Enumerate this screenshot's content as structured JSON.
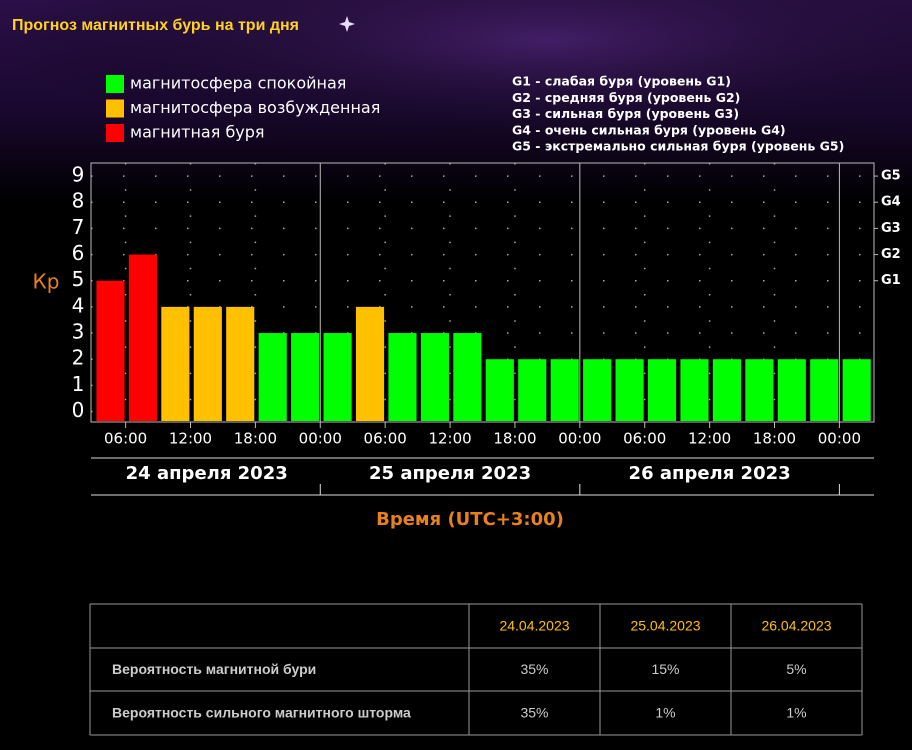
{
  "page": {
    "title": "Прогноз магнитных бурь на три дня"
  },
  "chart_data": {
    "type": "bar",
    "ylabel": "Кр",
    "xlabel": "Время (UTC+3:00)",
    "legend": [
      {
        "name": "магнитосфера спокойная",
        "color": "#00ff00"
      },
      {
        "name": "магнитосфера возбужденная",
        "color": "#ffc000"
      },
      {
        "name": "магнитная буря",
        "color": "#ff0000"
      }
    ],
    "notes": [
      "G1 - слабая буря (уровень G1)",
      "G2 - средняя буря (уровень G2)",
      "G3 - сильная буря (уровень G3)",
      "G4 - очень сильная буря (уровень G4)",
      "G5 - экстремально сильная буря (уровень G5)"
    ],
    "x": [
      3,
      6,
      9,
      12,
      15,
      18,
      21,
      24,
      27,
      30,
      33,
      36,
      39,
      42,
      45,
      48,
      51,
      54,
      57,
      60,
      63,
      66,
      69,
      72
    ],
    "values": [
      5,
      6,
      4,
      4,
      4,
      3,
      3,
      3,
      4,
      3,
      3,
      3,
      2,
      2,
      2,
      2,
      2,
      2,
      2,
      2,
      2,
      2,
      2,
      2
    ],
    "colors": [
      "#ff0000",
      "#ff0000",
      "#ffc000",
      "#ffc000",
      "#ffc000",
      "#00ff00",
      "#00ff00",
      "#00ff00",
      "#ffc000",
      "#00ff00",
      "#00ff00",
      "#00ff00",
      "#00ff00",
      "#00ff00",
      "#00ff00",
      "#00ff00",
      "#00ff00",
      "#00ff00",
      "#00ff00",
      "#00ff00",
      "#00ff00",
      "#00ff00",
      "#00ff00",
      "#00ff00"
    ],
    "xlim": [
      2.8,
      75.2
    ],
    "xticks": [
      {
        "value": 6,
        "label": "06:00"
      },
      {
        "value": 12,
        "label": "12:00"
      },
      {
        "value": 18,
        "label": "18:00"
      },
      {
        "value": 24,
        "label": "00:00"
      },
      {
        "value": 30,
        "label": "06:00"
      },
      {
        "value": 36,
        "label": "12:00"
      },
      {
        "value": 42,
        "label": "18:00"
      },
      {
        "value": 48,
        "label": "00:00"
      },
      {
        "value": 54,
        "label": "06:00"
      },
      {
        "value": 60,
        "label": "12:00"
      },
      {
        "value": 66,
        "label": "18:00"
      },
      {
        "value": 72,
        "label": "00:00"
      }
    ],
    "days": [
      "24 апреля 2023",
      "25 апреля 2023",
      "26 апреля 2023"
    ],
    "ylim": [
      -0.4,
      9.5
    ],
    "yticks": [
      0,
      1,
      2,
      3,
      4,
      5,
      6,
      7,
      8,
      9
    ],
    "y2lim": [
      -0.4,
      9.5
    ],
    "y2ticks": [
      {
        "value": 5,
        "label": "G1"
      },
      {
        "value": 6,
        "label": "G2"
      },
      {
        "value": 7,
        "label": "G3"
      },
      {
        "value": 8,
        "label": "G4"
      },
      {
        "value": 9,
        "label": "G5"
      }
    ],
    "grid": true
  },
  "table": {
    "header": [
      "24.04.2023",
      "25.04.2023",
      "26.04.2023"
    ],
    "rows": [
      [
        "Вероятность магнитной бури",
        "35%",
        "15%",
        "5%"
      ],
      [
        "Вероятность сильного магнитного шторма",
        "35%",
        "1%",
        "1%"
      ]
    ]
  }
}
